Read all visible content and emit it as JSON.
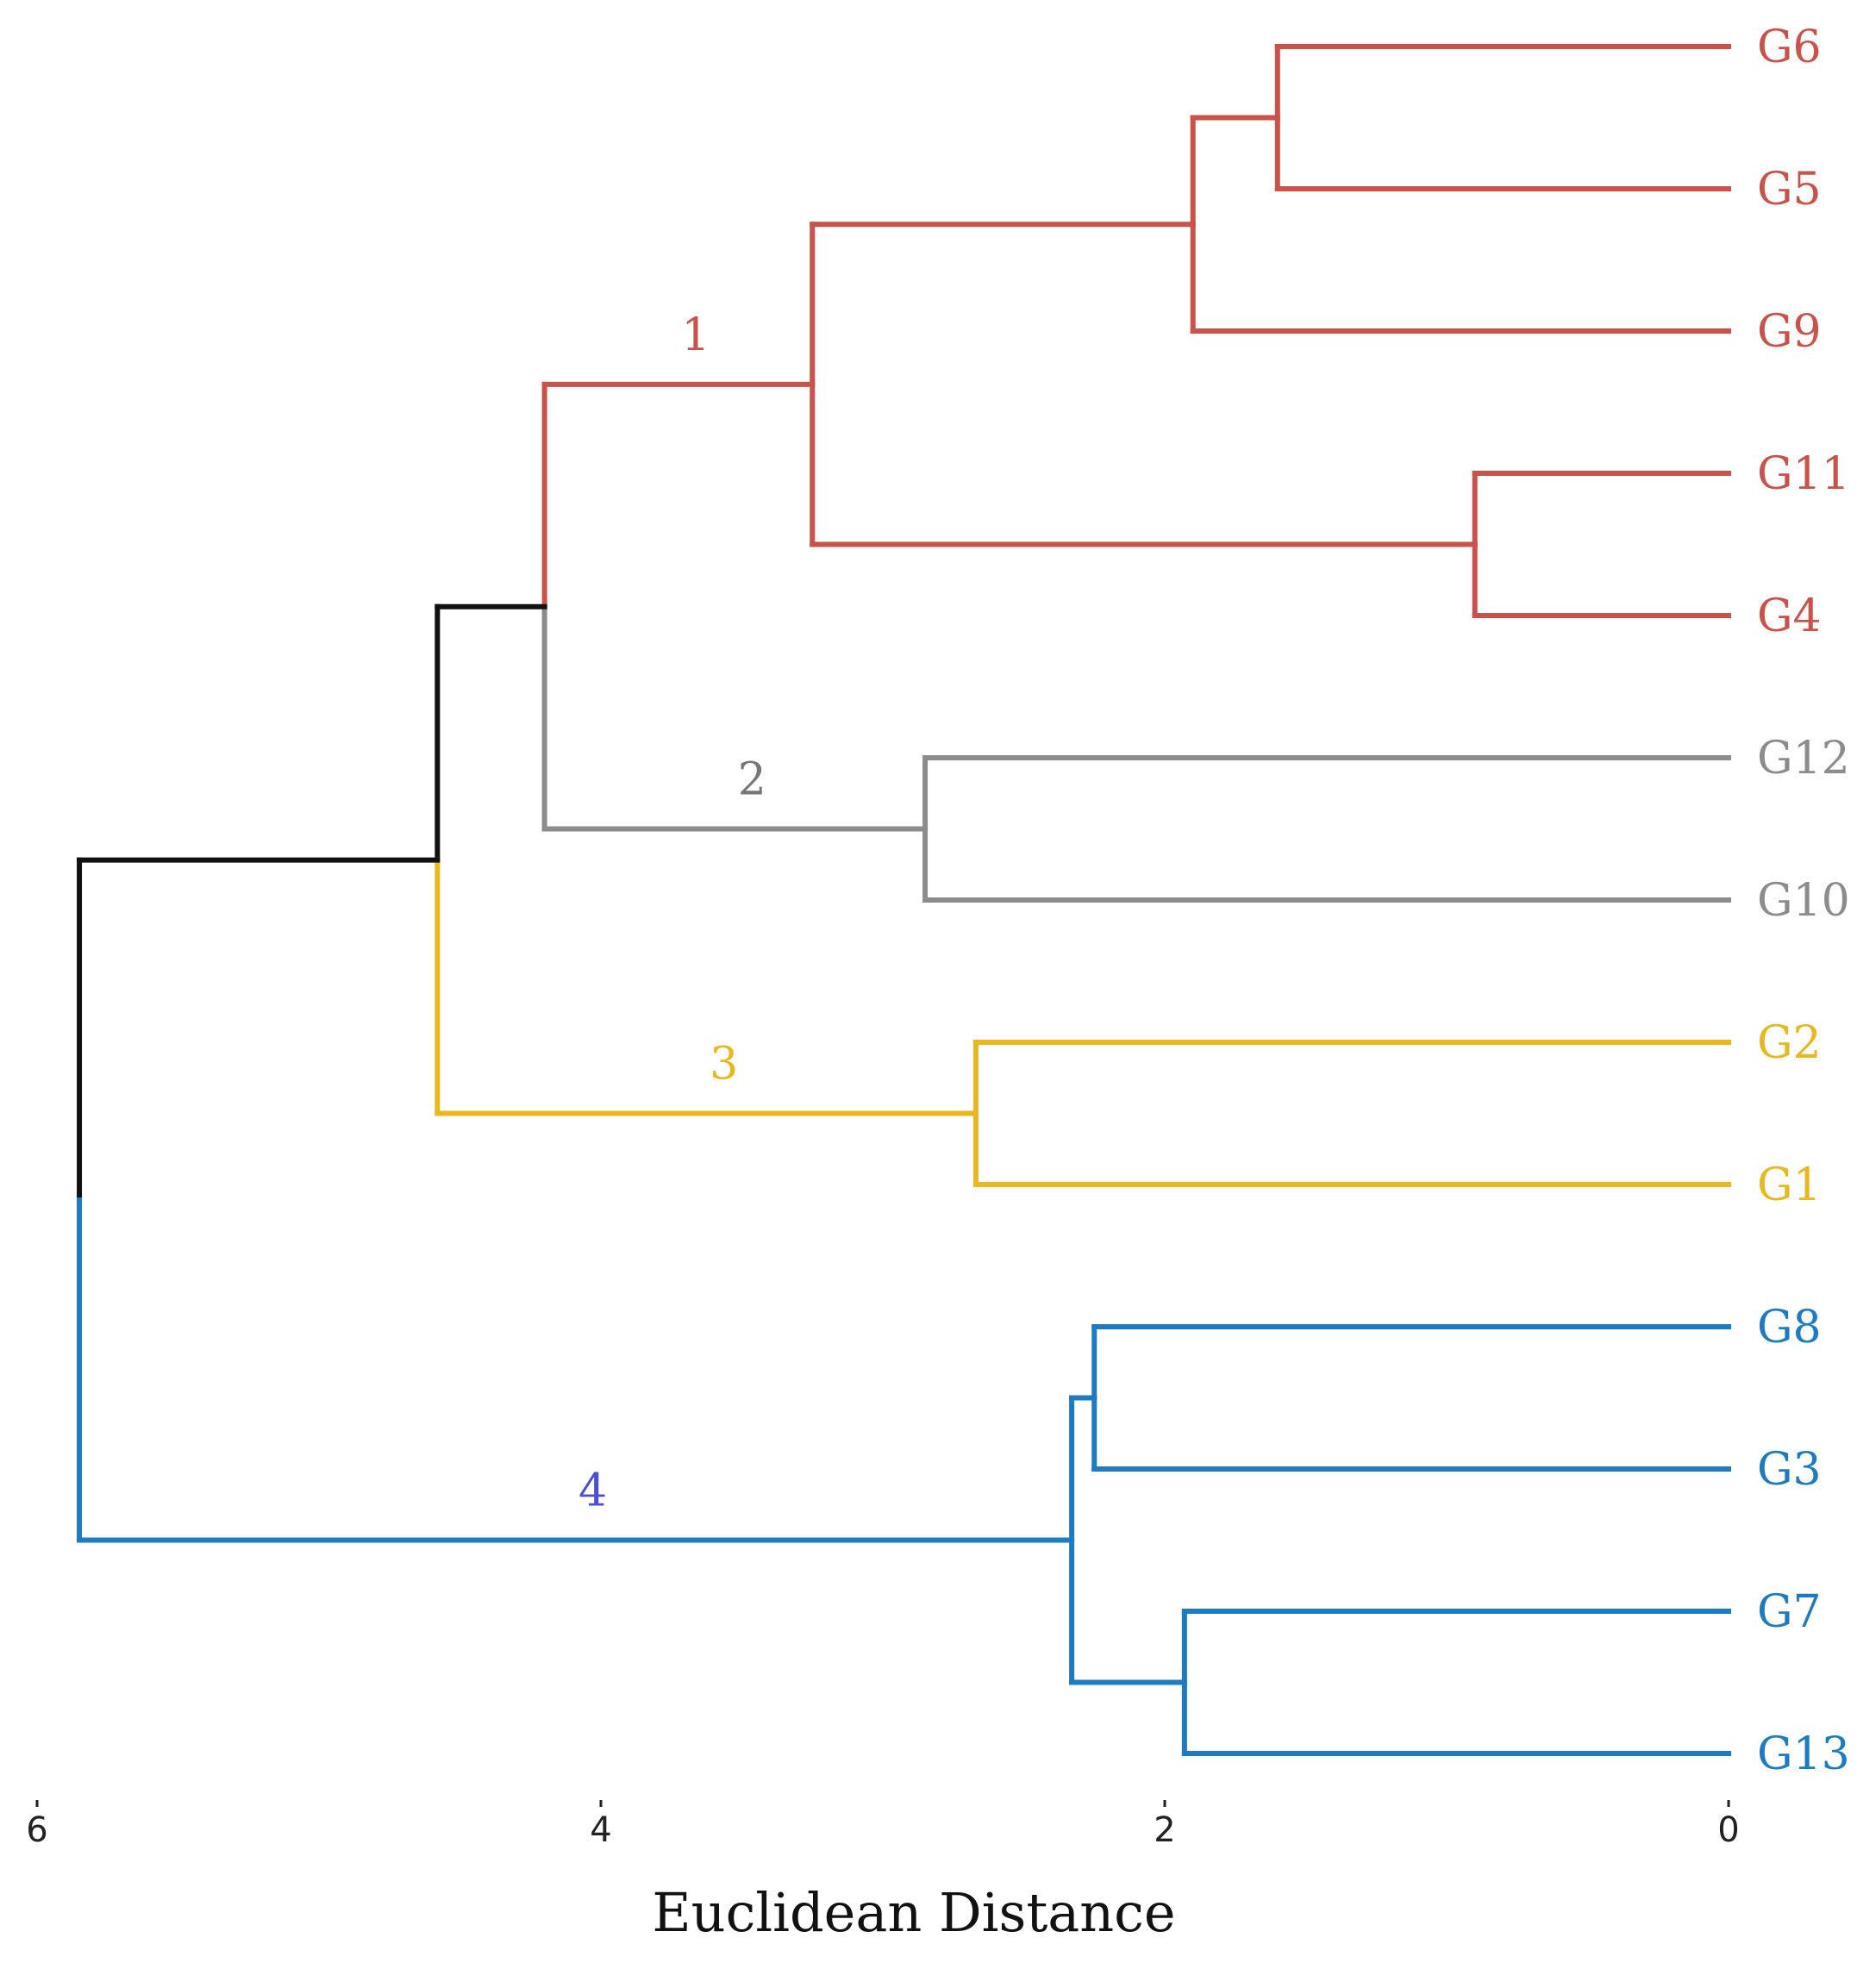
{
  "chart_data": {
    "type": "dendrogram",
    "orientation": "horizontal",
    "xlabel": "Euclidean Distance",
    "xlim": [
      6,
      0
    ],
    "xticks": [
      6,
      4,
      2,
      0
    ],
    "leaves": [
      {
        "name": "G6",
        "cluster": 1
      },
      {
        "name": "G5",
        "cluster": 1
      },
      {
        "name": "G9",
        "cluster": 1
      },
      {
        "name": "G11",
        "cluster": 1
      },
      {
        "name": "G4",
        "cluster": 1
      },
      {
        "name": "G12",
        "cluster": 2
      },
      {
        "name": "G10",
        "cluster": 2
      },
      {
        "name": "G2",
        "cluster": 3
      },
      {
        "name": "G1",
        "cluster": 3
      },
      {
        "name": "G8",
        "cluster": 4
      },
      {
        "name": "G3",
        "cluster": 4
      },
      {
        "name": "G7",
        "cluster": 4
      },
      {
        "name": "G13",
        "cluster": 4
      }
    ],
    "merges": [
      {
        "id": "m1",
        "height": 1.6,
        "children": [
          "G6",
          "G5"
        ]
      },
      {
        "id": "m2",
        "height": 1.9,
        "children": [
          "m1",
          "G9"
        ]
      },
      {
        "id": "m3",
        "height": 0.9,
        "children": [
          "G11",
          "G4"
        ]
      },
      {
        "id": "m4",
        "height": 3.25,
        "children": [
          "m2",
          "m3"
        ]
      },
      {
        "id": "m5",
        "height": 2.85,
        "children": [
          "G12",
          "G10"
        ]
      },
      {
        "id": "m6",
        "height": 4.2,
        "children": [
          "m4",
          "m5"
        ]
      },
      {
        "id": "m7",
        "height": 2.67,
        "children": [
          "G2",
          "G1"
        ]
      },
      {
        "id": "m8",
        "height": 4.58,
        "children": [
          "m6",
          "m7"
        ]
      },
      {
        "id": "m9",
        "height": 2.25,
        "children": [
          "G8",
          "G3"
        ]
      },
      {
        "id": "m10",
        "height": 1.93,
        "children": [
          "G7",
          "G13"
        ]
      },
      {
        "id": "m11",
        "height": 2.33,
        "children": [
          "m9",
          "m10"
        ]
      },
      {
        "id": "m12",
        "height": 5.85,
        "children": [
          "m8",
          "m11"
        ]
      }
    ],
    "clusters": [
      {
        "id": 1,
        "label": "1",
        "color": "#c9524a",
        "label_color": "#c9524a"
      },
      {
        "id": 2,
        "label": "2",
        "color": "#8c8c8c",
        "label_color": "#777777"
      },
      {
        "id": 3,
        "label": "3",
        "color": "#e8b820",
        "label_color": "#e8b820"
      },
      {
        "id": 4,
        "label": "4",
        "color": "#1f7bbf",
        "label_color": "#4a4fcf"
      }
    ],
    "root_color": "#111111"
  }
}
